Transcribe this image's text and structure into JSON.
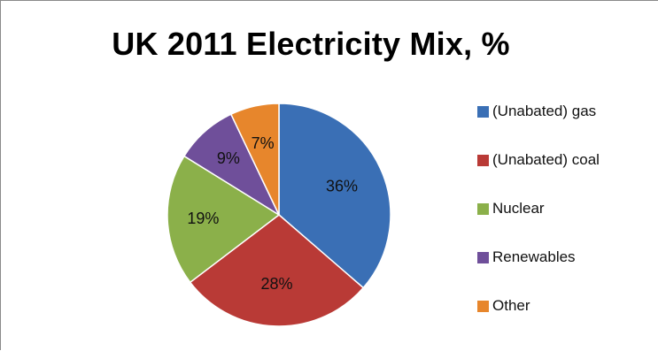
{
  "chart_data": {
    "type": "pie",
    "title": "UK 2011 Electricity Mix, %",
    "categories": [
      "(Unabated) gas",
      "(Unabated) coal",
      "Nuclear",
      "Renewables",
      "Other"
    ],
    "values": [
      36,
      28,
      19,
      9,
      7
    ],
    "labels": [
      "36%",
      "28%",
      "19%",
      "9%",
      "7%"
    ],
    "colors": [
      "#3a6fb5",
      "#b93a36",
      "#8bb04a",
      "#6f4f9a",
      "#e7862c"
    ],
    "legend_position": "right",
    "start_angle": "12 o'clock, clockwise"
  }
}
